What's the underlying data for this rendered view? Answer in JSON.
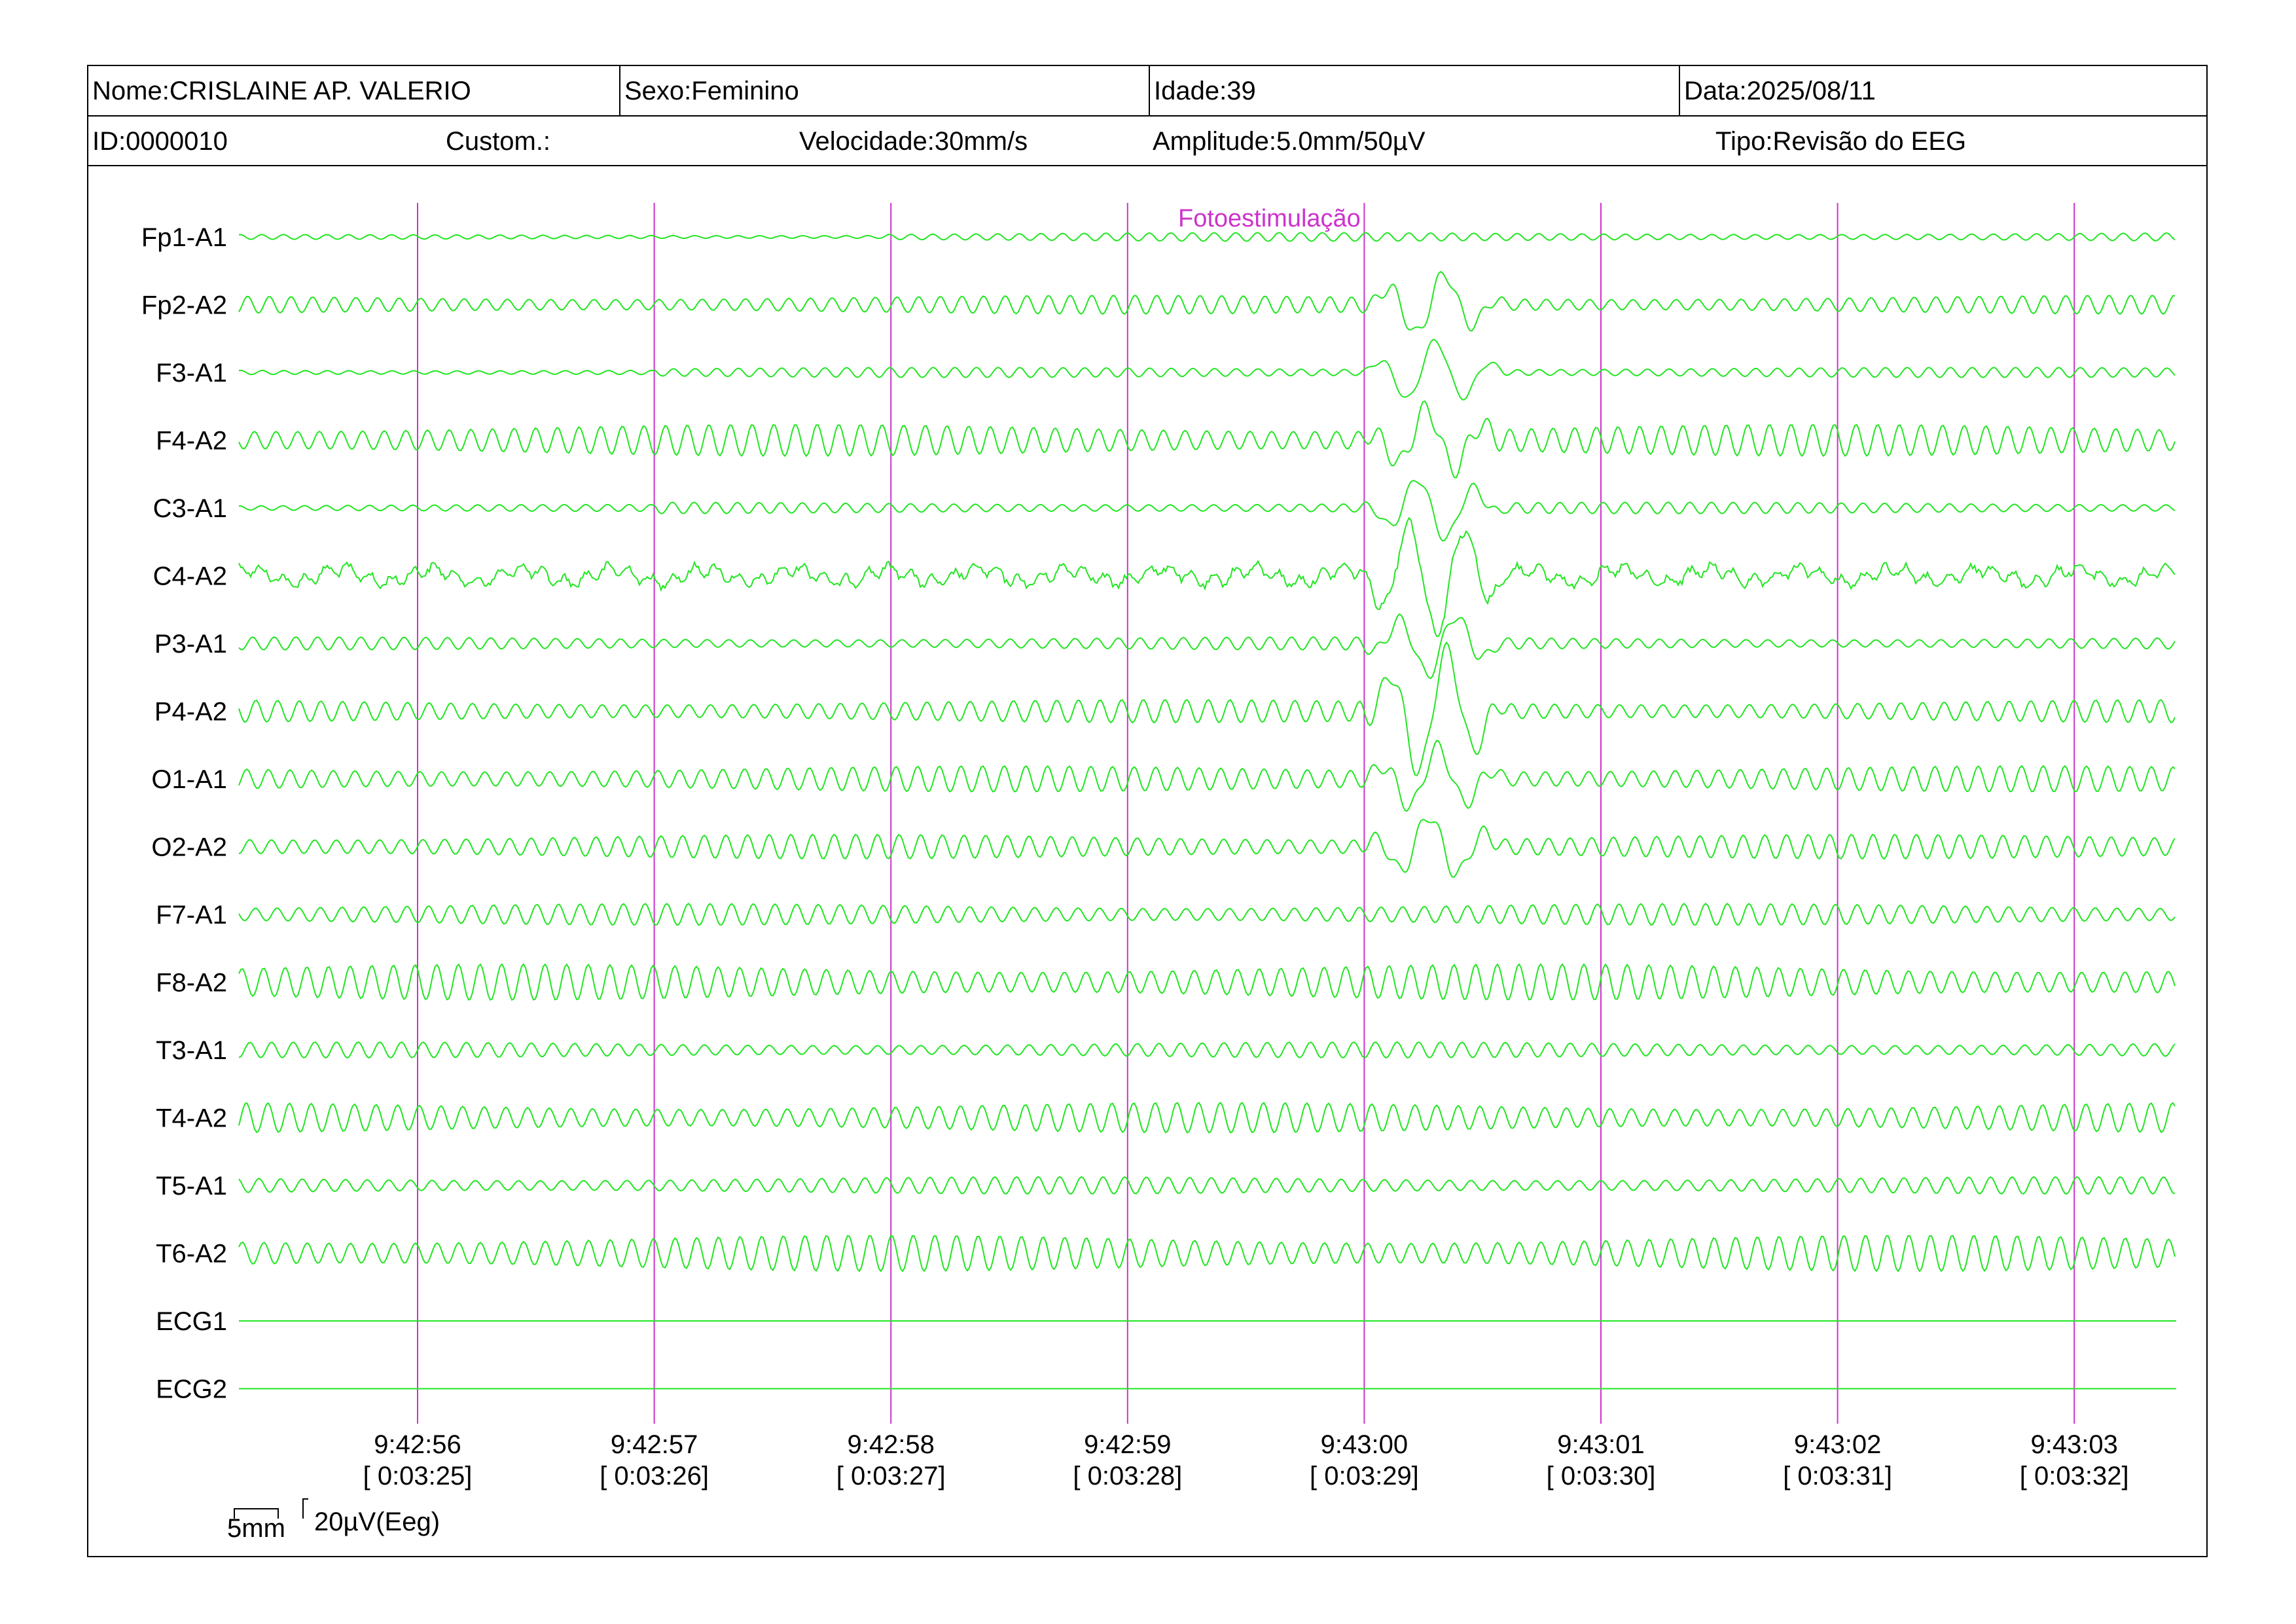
{
  "header": {
    "name": "Nome:CRISLAINE AP. VALERIO",
    "sex": "Sexo:Feminino",
    "age": "Idade:39",
    "date": "Data:2025/08/11",
    "id": "ID:0000010",
    "custom": "Custom.:",
    "speed": "Velocidade:30mm/s",
    "amplitude": "Amplitude:5.0mm/50µV",
    "type": "Tipo:Revisão do EEG"
  },
  "event_label": "Fotoestimulação",
  "channels": [
    {
      "label": "Fp1-A1",
      "amp": 6,
      "freq": 0.19
    },
    {
      "label": "Fp2-A2",
      "amp": 13,
      "freq": 0.19
    },
    {
      "label": "F3-A1",
      "amp": 7,
      "freq": 0.19
    },
    {
      "label": "F4-A2",
      "amp": 22,
      "freq": 0.19
    },
    {
      "label": "C3-A1",
      "amp": 8,
      "freq": 0.19
    },
    {
      "label": "C4-A2",
      "amp": 14,
      "freq": 0.12
    },
    {
      "label": "P3-A1",
      "amp": 9,
      "freq": 0.19
    },
    {
      "label": "P4-A2",
      "amp": 16,
      "freq": 0.19
    },
    {
      "label": "O1-A1",
      "amp": 18,
      "freq": 0.19
    },
    {
      "label": "O2-A2",
      "amp": 17,
      "freq": 0.19
    },
    {
      "label": "F7-A1",
      "amp": 15,
      "freq": 0.19
    },
    {
      "label": "F8-A2",
      "amp": 25,
      "freq": 0.19
    },
    {
      "label": "T3-A1",
      "amp": 11,
      "freq": 0.19
    },
    {
      "label": "T4-A2",
      "amp": 21,
      "freq": 0.19
    },
    {
      "label": "T5-A1",
      "amp": 12,
      "freq": 0.19
    },
    {
      "label": "T6-A2",
      "amp": 25,
      "freq": 0.19
    },
    {
      "label": "ECG1",
      "amp": 0,
      "freq": 0
    },
    {
      "label": "ECG2",
      "amp": 0,
      "freq": 0
    }
  ],
  "time_marks": [
    {
      "clock": "9:42:56",
      "elapsed": "[ 0:03:25]"
    },
    {
      "clock": "9:42:57",
      "elapsed": "[ 0:03:26]"
    },
    {
      "clock": "9:42:58",
      "elapsed": "[ 0:03:27]"
    },
    {
      "clock": "9:42:59",
      "elapsed": "[ 0:03:28]"
    },
    {
      "clock": "9:43:00",
      "elapsed": "[ 0:03:29]"
    },
    {
      "clock": "9:43:01",
      "elapsed": "[ 0:03:30]"
    },
    {
      "clock": "9:43:02",
      "elapsed": "[ 0:03:31]"
    },
    {
      "clock": "9:43:03",
      "elapsed": "[ 0:03:32]"
    }
  ],
  "scale_bar": {
    "time": "5mm",
    "voltage": "20µV(Eeg)"
  },
  "colors": {
    "trace": "#22e622",
    "marker": "#cc33cc",
    "border": "#000000"
  }
}
